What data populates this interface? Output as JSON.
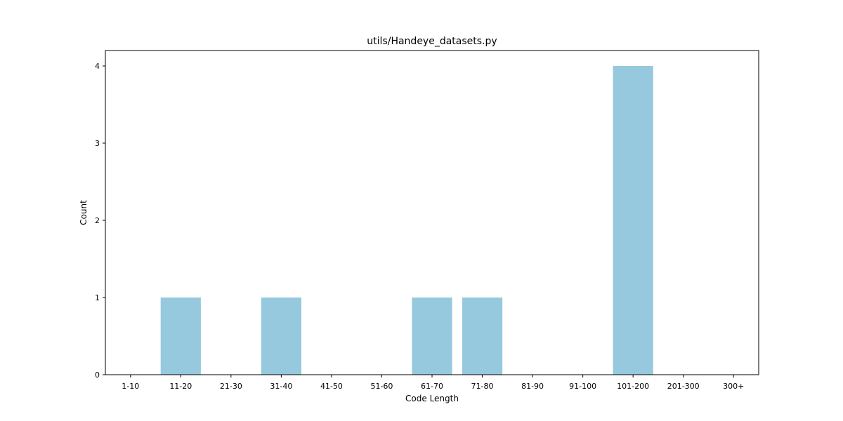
{
  "chart_data": {
    "type": "bar",
    "title": "utils/Handeye_datasets.py",
    "xlabel": "Code Length",
    "ylabel": "Count",
    "categories": [
      "1-10",
      "11-20",
      "21-30",
      "31-40",
      "41-50",
      "51-60",
      "61-70",
      "71-80",
      "81-90",
      "91-100",
      "101-200",
      "201-300",
      "300+"
    ],
    "values": [
      0,
      1,
      0,
      1,
      0,
      0,
      1,
      1,
      0,
      0,
      4,
      0,
      0
    ],
    "ylim": [
      0,
      4.2
    ],
    "yticks": [
      0,
      1,
      2,
      3,
      4
    ],
    "grid": false,
    "bar_color": "#96c9dd"
  }
}
